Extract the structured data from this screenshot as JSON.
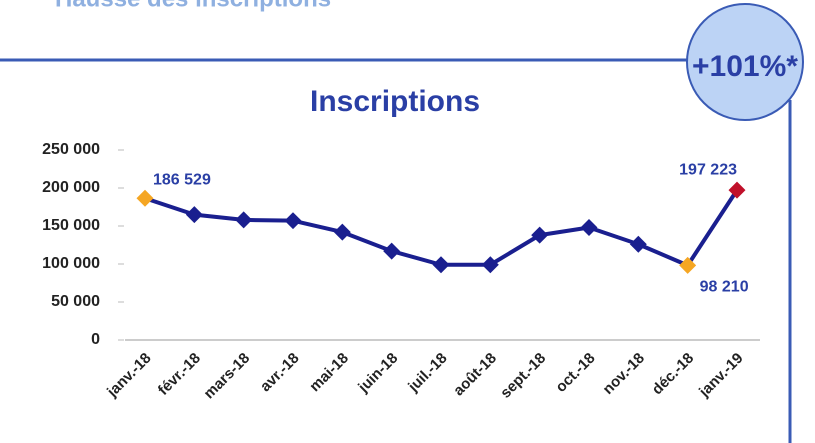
{
  "header": {
    "title": "Hausse des inscriptions",
    "badge": "+101%*"
  },
  "chart_data": {
    "type": "line",
    "title": "Inscriptions",
    "categories": [
      "janv.-18",
      "févr.-18",
      "mars-18",
      "avr.-18",
      "mai-18",
      "juin-18",
      "juil.-18",
      "août-18",
      "sept.-18",
      "oct.-18",
      "nov.-18",
      "déc.-18",
      "janv.-19"
    ],
    "series": [
      {
        "name": "Inscriptions",
        "color": "#1a1f8f",
        "values": [
          186529,
          165000,
          158000,
          157000,
          142000,
          117000,
          99000,
          99000,
          138000,
          148000,
          126000,
          98210,
          197223
        ],
        "value_labels": [
          "186 529",
          null,
          null,
          null,
          null,
          null,
          null,
          null,
          null,
          null,
          null,
          "98 210",
          "197 223"
        ],
        "marker_colors": [
          "#f5a623",
          "#1a1f8f",
          "#1a1f8f",
          "#1a1f8f",
          "#1a1f8f",
          "#1a1f8f",
          "#1a1f8f",
          "#1a1f8f",
          "#1a1f8f",
          "#1a1f8f",
          "#1a1f8f",
          "#f5a623",
          "#c0102a"
        ]
      }
    ],
    "ylim": [
      0,
      250000
    ],
    "yticks": [
      {
        "value": 0,
        "label": "0"
      },
      {
        "value": 50000,
        "label": "50 000"
      },
      {
        "value": 100000,
        "label": "100 000"
      },
      {
        "value": 150000,
        "label": "150 000"
      },
      {
        "value": 200000,
        "label": "200 000"
      },
      {
        "value": 250000,
        "label": "250 000"
      }
    ],
    "grid": false
  }
}
